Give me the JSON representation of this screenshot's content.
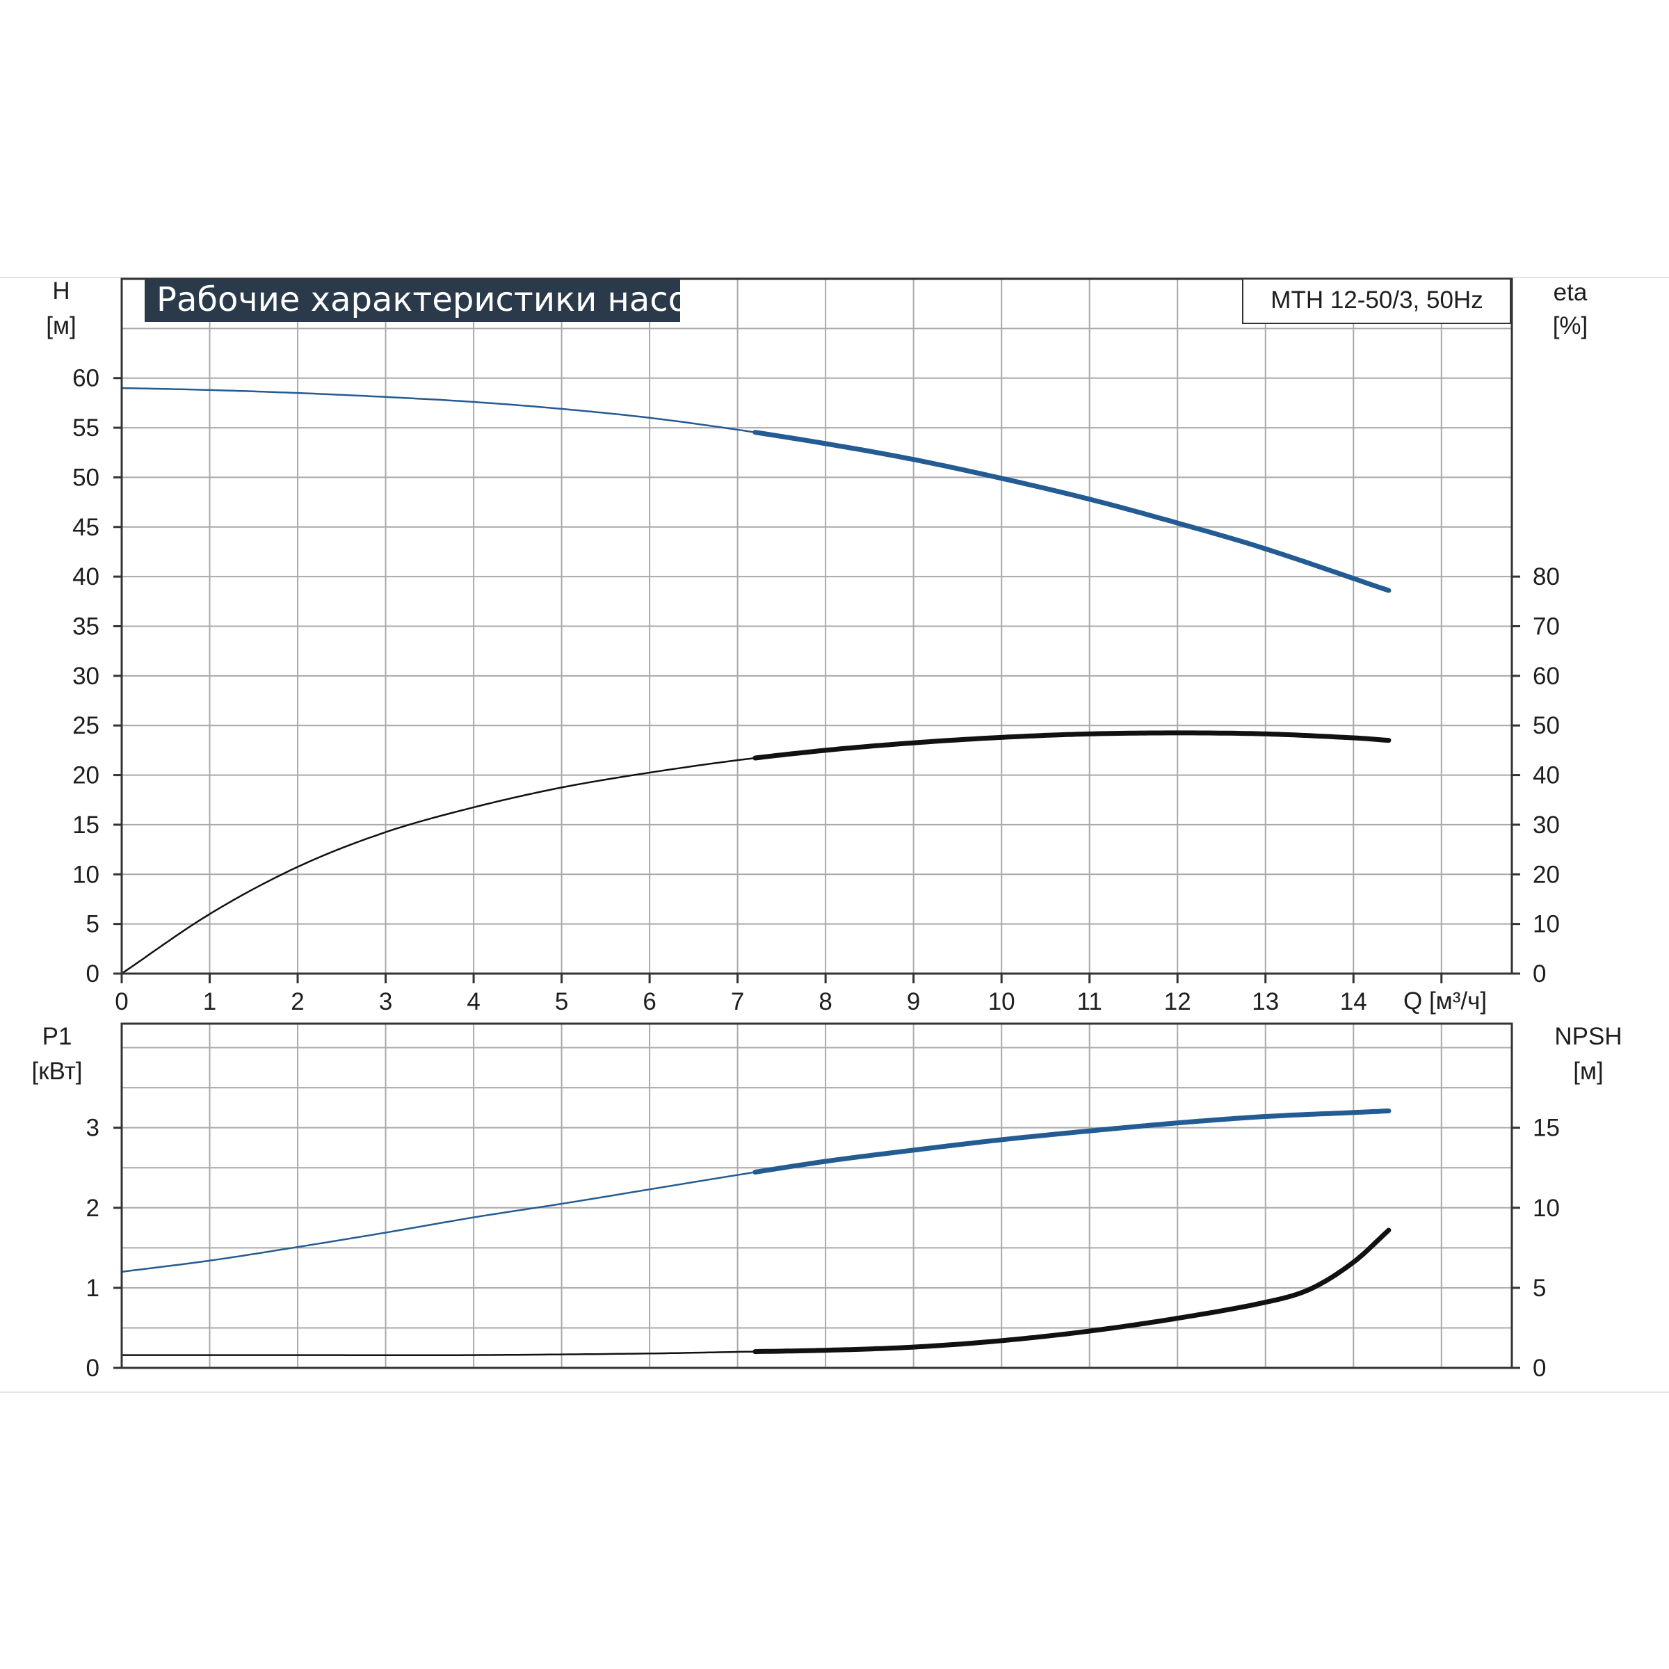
{
  "title": "Рабочие характеристики насоса",
  "model": "MTH 12-50/3, 50Hz",
  "colors": {
    "blue": "#235b93",
    "black": "#111111",
    "grid": "#a9a9a9",
    "title_bg": "#2b3a4b",
    "frame": "#333333"
  },
  "chart_data": [
    {
      "type": "line",
      "title": "Рабочие характеристики насоса",
      "xlabel": "Q [м³/ч]",
      "xlim": [
        0,
        15.8
      ],
      "xticks": [
        "0",
        "1",
        "2",
        "3",
        "4",
        "5",
        "6",
        "7",
        "8",
        "9",
        "10",
        "11",
        "12",
        "13",
        "14"
      ],
      "grid": true,
      "left_axis": {
        "label": "H",
        "unit": "[м]",
        "ylim": [
          0,
          70
        ],
        "ticks": [
          "0",
          "5",
          "10",
          "15",
          "20",
          "25",
          "30",
          "35",
          "40",
          "45",
          "50",
          "55",
          "60"
        ]
      },
      "right_axis": {
        "label": "eta",
        "unit": "[%]",
        "ylim": [
          0,
          140
        ],
        "ticks": [
          "0",
          "10",
          "20",
          "30",
          "40",
          "50",
          "60",
          "70",
          "80"
        ]
      },
      "series": [
        {
          "axis": "left",
          "color": "blue",
          "bold_from": 7.2,
          "x": [
            0,
            1,
            2,
            3,
            4,
            5,
            6,
            7,
            8,
            9,
            10,
            11,
            12,
            13,
            14.4
          ],
          "y": [
            59,
            58.8,
            58.5,
            58.1,
            57.6,
            56.9,
            56,
            54.8,
            53.4,
            51.8,
            49.9,
            47.8,
            45.4,
            42.8,
            38.6
          ]
        },
        {
          "axis": "right",
          "color": "black",
          "bold_from": 7.2,
          "x": [
            0,
            1,
            2,
            3,
            4,
            5,
            6,
            7,
            8,
            9,
            10,
            11,
            12,
            13,
            14,
            14.4
          ],
          "y": [
            0,
            12,
            21.5,
            28.5,
            33.5,
            37.5,
            40.5,
            43,
            45,
            46.5,
            47.6,
            48.3,
            48.5,
            48.3,
            47.5,
            47
          ]
        }
      ]
    },
    {
      "type": "line",
      "xlim": [
        0,
        15.8
      ],
      "grid": true,
      "left_axis": {
        "label": "P1",
        "unit": "[кВт]",
        "ylim": [
          0,
          4.3
        ],
        "ticks": [
          "0",
          "1",
          "2",
          "3"
        ]
      },
      "right_axis": {
        "label": "NPSH",
        "unit": "[м]",
        "ylim": [
          0,
          21.5
        ],
        "ticks": [
          "0",
          "5",
          "10",
          "15"
        ]
      },
      "series": [
        {
          "axis": "left",
          "color": "blue",
          "bold_from": 7.2,
          "x": [
            0,
            1,
            2,
            3,
            4,
            5,
            6,
            7,
            8,
            9,
            10,
            11,
            12,
            13,
            14,
            14.4
          ],
          "y": [
            1.2,
            1.34,
            1.51,
            1.69,
            1.88,
            2.05,
            2.23,
            2.41,
            2.58,
            2.72,
            2.85,
            2.96,
            3.06,
            3.14,
            3.19,
            3.21
          ]
        },
        {
          "axis": "right",
          "color": "black",
          "bold_from": 7.2,
          "x": [
            0,
            2,
            4,
            6,
            7,
            8,
            9,
            10,
            11,
            12,
            13,
            13.5,
            14,
            14.4
          ],
          "y": [
            0.8,
            0.8,
            0.8,
            0.9,
            1,
            1.1,
            1.3,
            1.7,
            2.3,
            3.1,
            4.1,
            4.9,
            6.6,
            8.6
          ]
        }
      ]
    }
  ]
}
